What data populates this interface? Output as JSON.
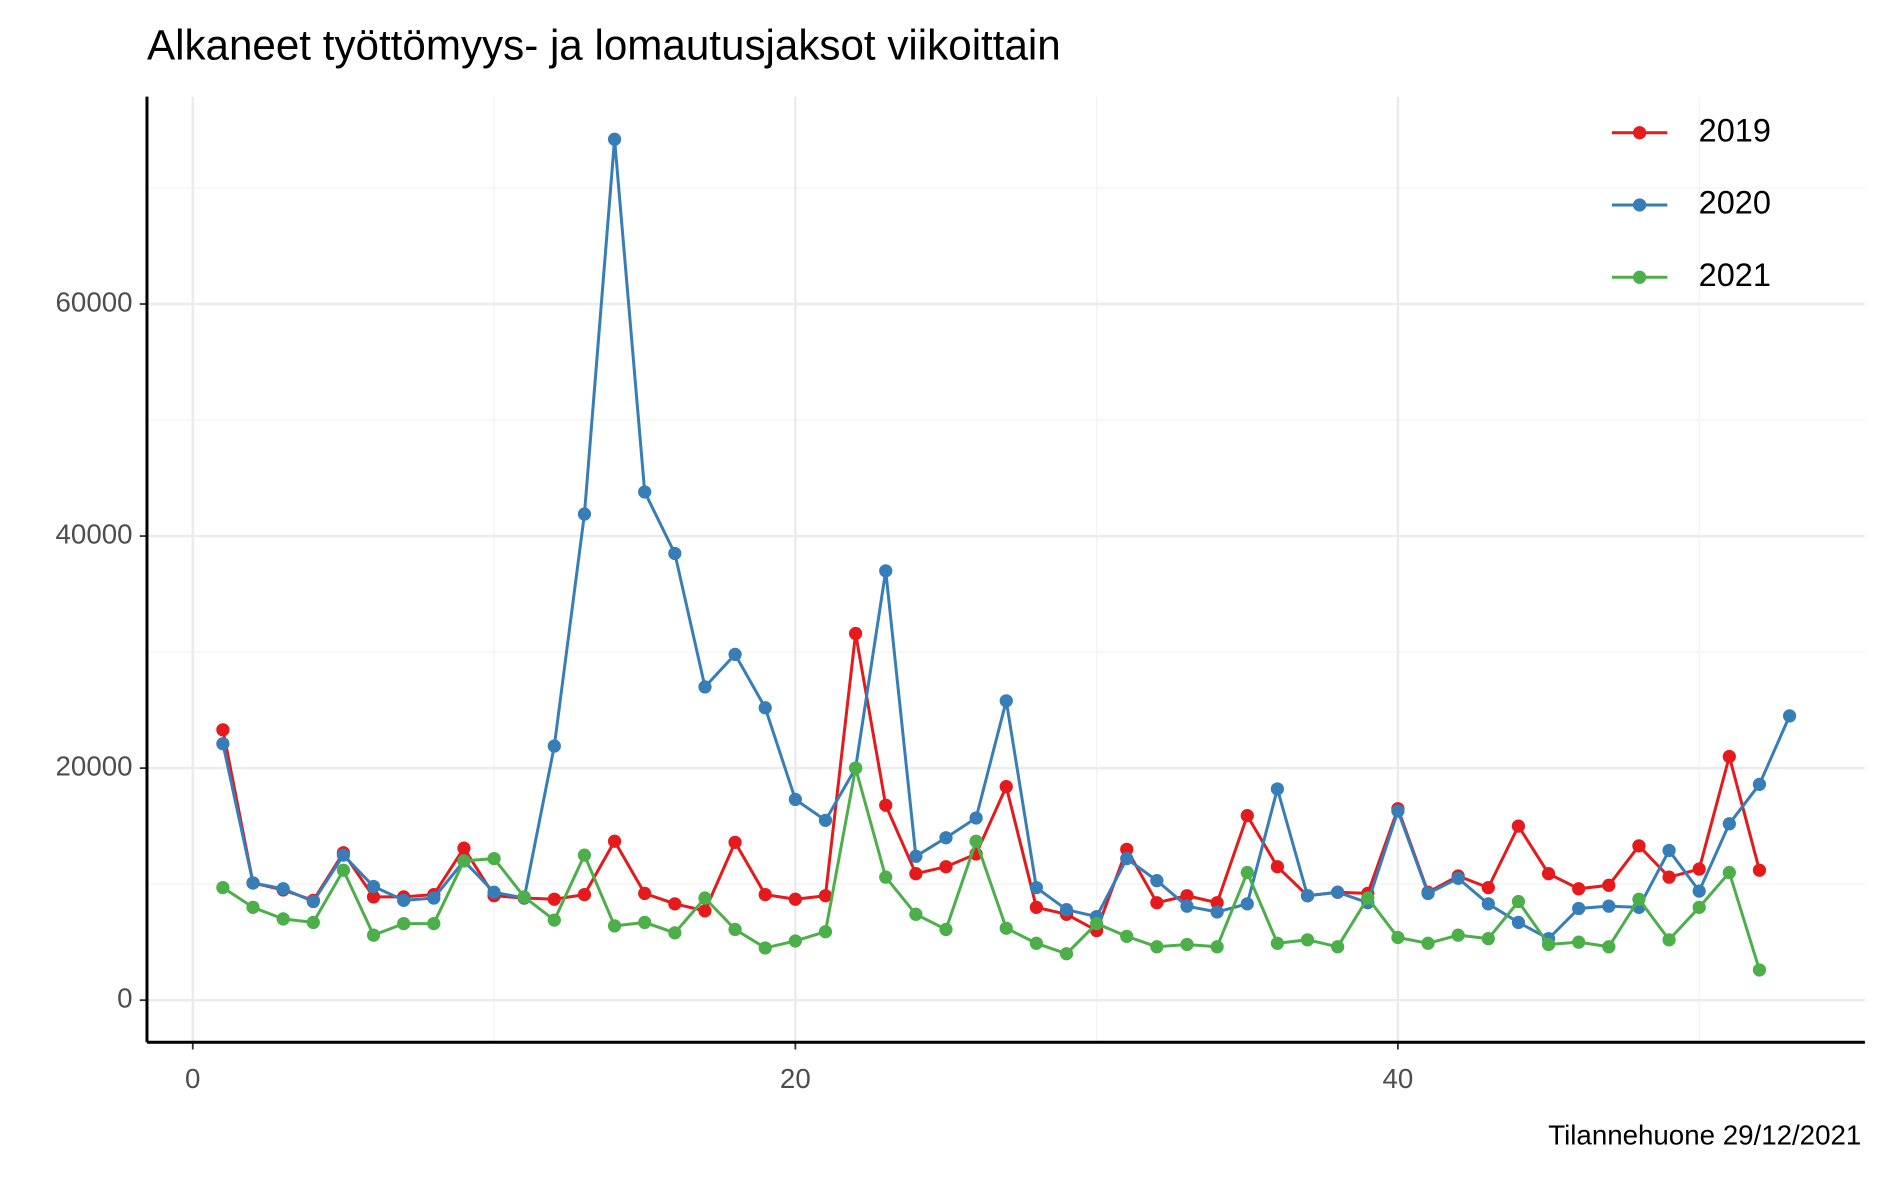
{
  "chart_data": {
    "type": "line",
    "title": "Alkaneet työttömyys- ja lomautusjaksot viikoittain",
    "caption": "Tilannehuone 29/12/2021",
    "x": [
      1,
      2,
      3,
      4,
      5,
      6,
      7,
      8,
      9,
      10,
      11,
      12,
      13,
      14,
      15,
      16,
      17,
      18,
      19,
      20,
      21,
      22,
      23,
      24,
      25,
      26,
      27,
      28,
      29,
      30,
      31,
      32,
      33,
      34,
      35,
      36,
      37,
      38,
      39,
      40,
      41,
      42,
      43,
      44,
      45,
      46,
      47,
      48,
      49,
      50,
      51,
      52,
      53
    ],
    "series": [
      {
        "name": "2019",
        "color": "#e41a1c",
        "values": [
          23300,
          10100,
          9500,
          8600,
          12700,
          8900,
          8900,
          9100,
          13100,
          9000,
          8800,
          8700,
          9100,
          13700,
          9200,
          8300,
          7700,
          13600,
          9100,
          8700,
          9000,
          31600,
          16800,
          10900,
          11500,
          12600,
          18400,
          8000,
          7400,
          6000,
          13000,
          8400,
          9000,
          8400,
          15900,
          11500,
          9000,
          9300,
          9200,
          16500,
          9300,
          10700,
          9700,
          15000,
          10900,
          9600,
          9900,
          13300,
          10600,
          11300,
          21000,
          11200,
          null
        ]
      },
      {
        "name": "2020",
        "color": "#377eb8",
        "values": [
          22100,
          10100,
          9600,
          8500,
          12500,
          9800,
          8600,
          8800,
          12000,
          9300,
          8800,
          21900,
          41900,
          74200,
          43800,
          38500,
          27000,
          29800,
          25200,
          17300,
          15500,
          20000,
          37000,
          12400,
          14000,
          15700,
          25800,
          9700,
          7800,
          7200,
          12200,
          10300,
          8100,
          7600,
          8300,
          18200,
          9000,
          9300,
          8400,
          16300,
          9200,
          10500,
          8300,
          6700,
          5300,
          7900,
          8100,
          8000,
          12900,
          9400,
          15200,
          18600,
          24500
        ]
      },
      {
        "name": "2021",
        "color": "#4daf4a",
        "values": [
          9700,
          8000,
          7000,
          6700,
          11200,
          5600,
          6600,
          6600,
          12000,
          12200,
          8900,
          6900,
          12500,
          6400,
          6700,
          5800,
          8800,
          6100,
          4500,
          5100,
          5900,
          20000,
          10600,
          7400,
          6100,
          13700,
          6200,
          4900,
          4000,
          6600,
          5500,
          4600,
          4800,
          4600,
          11000,
          4900,
          5200,
          4600,
          8800,
          5400,
          4900,
          5600,
          5300,
          8500,
          4800,
          5000,
          4600,
          8700,
          5200,
          8000,
          11000,
          2600,
          null
        ]
      }
    ],
    "xlim": [
      -1.52,
      55.5
    ],
    "ylim": [
      -3630,
      77880
    ],
    "xticks": [
      0,
      20,
      40
    ],
    "yticks": [
      0,
      20000,
      40000,
      60000
    ],
    "grid": true,
    "legend": "top-right"
  }
}
